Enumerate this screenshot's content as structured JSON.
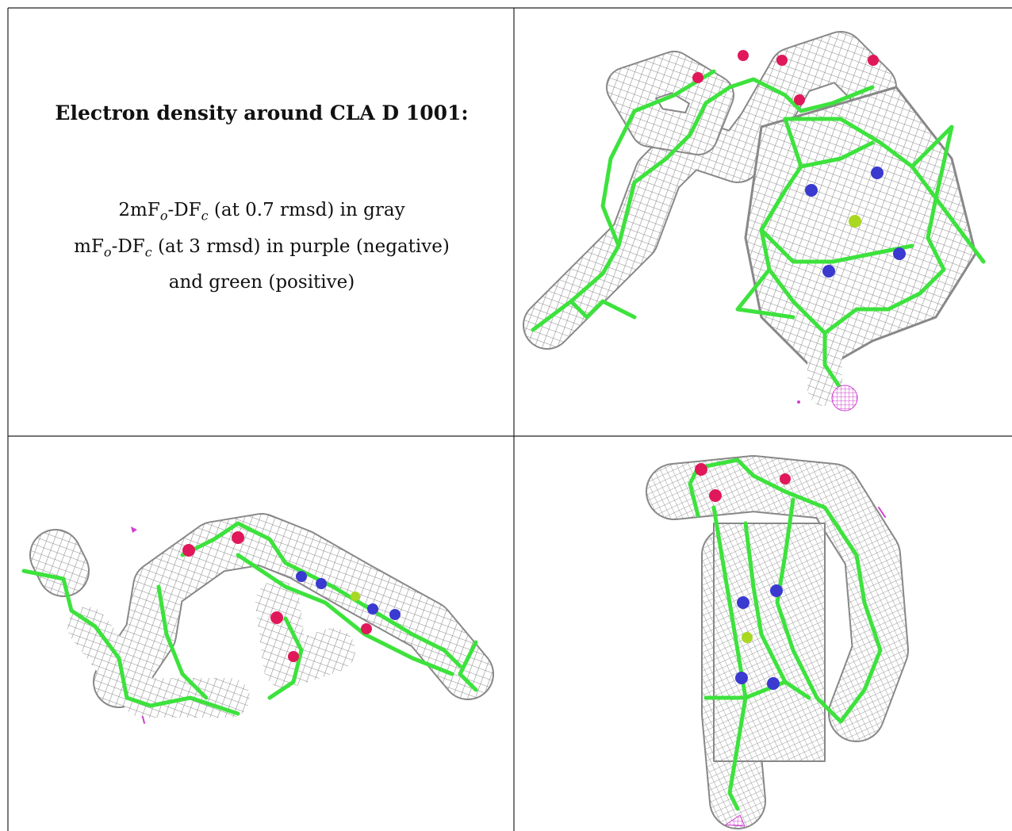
{
  "caption": {
    "title": "Electron density around CLA D 1001:",
    "lines": [
      [
        "2mF",
        "o",
        "-DF",
        "c",
        " (at 0.7 rmsd) in gray"
      ],
      [
        "mF",
        "o",
        "-DF",
        "c",
        " (at 3 rmsd) in purple (negative)"
      ],
      [
        "and green (positive)"
      ]
    ]
  }
}
